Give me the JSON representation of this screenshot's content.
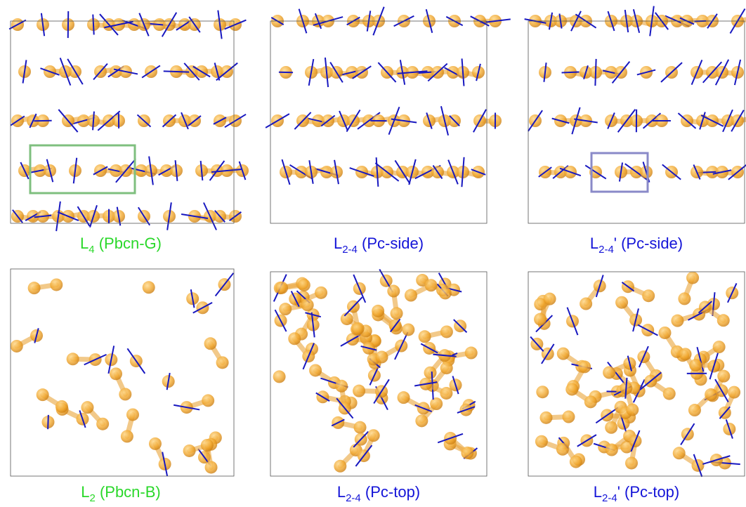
{
  "panels": [
    {
      "main": "L",
      "sub": "4",
      "rest": " (Pbcn-G)"
    },
    {
      "main": "L",
      "sub": "2-4",
      "rest": " (Pc-side)"
    },
    {
      "main": "L",
      "sub": "2-4",
      "rest": "' (Pc-side)"
    },
    {
      "main": "L",
      "sub": "2",
      "rest": " (Pbcn-B)"
    },
    {
      "main": "L",
      "sub": "2-4",
      "rest": " (Pc-top)"
    },
    {
      "main": "L",
      "sub": "2-4",
      "rest": "' (Pc-top)"
    }
  ]
}
